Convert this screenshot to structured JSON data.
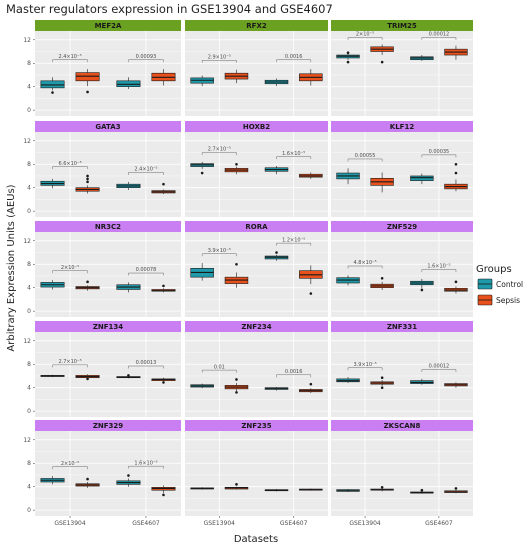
{
  "title": "Master regulators expression in GSE13904 and GSE4607",
  "xlabel": "Datasets",
  "ylabel": "Arbitrary Expression Units (AEUs)",
  "legend": {
    "title": "Groups",
    "items": [
      {
        "label": "Control",
        "color": "#1f9aaa"
      },
      {
        "label": "Sepsis",
        "color": "#e8501c"
      }
    ]
  },
  "colors": {
    "panel_bg": "#ebebeb",
    "grid": "#ffffff",
    "strip_row1": "#6aa121",
    "strip_other": "#c97ef2"
  },
  "chart_data": {
    "type": "box",
    "facet_layout": {
      "rows": 5,
      "cols": 3
    },
    "categories": [
      "GSE13904",
      "GSE4607"
    ],
    "groups": [
      "Control",
      "Sepsis"
    ],
    "y_ticks": [
      0,
      4,
      8,
      12
    ],
    "ylim": [
      -1,
      13.5
    ],
    "grid": true,
    "legend_position": "right",
    "panels": [
      {
        "gene": "MEF2A",
        "strip": "row1",
        "pvalues": [
          "2.4×10⁻⁵",
          "0.00093"
        ],
        "boxes": [
          [
            3.4,
            3.8,
            4.3,
            5.0,
            5.6,
            [
              3.0
            ]
          ],
          [
            4.1,
            5.0,
            5.8,
            6.4,
            7.0,
            [
              3.1
            ]
          ],
          [
            3.6,
            4.0,
            4.4,
            5.0,
            5.6,
            []
          ],
          [
            4.2,
            5.0,
            5.6,
            6.3,
            7.0,
            []
          ]
        ]
      },
      {
        "gene": "RFX2",
        "strip": "row1",
        "pvalues": [
          "2.9×10⁻⁵",
          "0.0016"
        ],
        "boxes": [
          [
            4.1,
            4.6,
            5.1,
            5.5,
            5.9,
            []
          ],
          [
            4.6,
            5.3,
            5.8,
            6.3,
            6.9,
            []
          ],
          [
            4.1,
            4.5,
            4.8,
            5.1,
            5.4,
            []
          ],
          [
            4.2,
            5.0,
            5.6,
            6.2,
            7.0,
            []
          ]
        ]
      },
      {
        "gene": "TRIM25",
        "strip": "row1",
        "pvalues": [
          "2×10⁻⁵",
          "0.00012"
        ],
        "boxes": [
          [
            8.6,
            8.9,
            9.2,
            9.4,
            9.6,
            [
              9.8,
              8.2
            ]
          ],
          [
            9.4,
            10.0,
            10.4,
            10.8,
            11.2,
            [
              8.2
            ]
          ],
          [
            8.4,
            8.6,
            8.9,
            9.1,
            9.4,
            []
          ],
          [
            8.6,
            9.4,
            9.9,
            10.4,
            11.0,
            []
          ]
        ]
      },
      {
        "gene": "GATA3",
        "strip": "other",
        "pvalues": [
          "6.6×10⁻⁵",
          "2.4×10⁻⁵"
        ],
        "boxes": [
          [
            3.9,
            4.4,
            4.7,
            5.1,
            5.5,
            []
          ],
          [
            3.0,
            3.4,
            3.7,
            4.0,
            4.4,
            [
              5.0,
              5.5,
              6.0
            ]
          ],
          [
            3.6,
            4.0,
            4.3,
            4.6,
            5.0,
            []
          ],
          [
            2.9,
            3.1,
            3.3,
            3.5,
            3.7,
            [
              4.6
            ]
          ]
        ]
      },
      {
        "gene": "HOXB2",
        "strip": "other",
        "pvalues": [
          "2.7×10⁻⁵",
          "1.6×10⁻⁵"
        ],
        "boxes": [
          [
            7.2,
            7.6,
            7.9,
            8.1,
            8.4,
            [
              6.5
            ]
          ],
          [
            6.3,
            6.7,
            7.0,
            7.3,
            7.6,
            [
              8.0
            ]
          ],
          [
            6.3,
            6.8,
            7.1,
            7.4,
            7.7,
            []
          ],
          [
            5.5,
            5.8,
            6.0,
            6.3,
            6.6,
            []
          ]
        ]
      },
      {
        "gene": "KLF12",
        "strip": "other",
        "pvalues": [
          "0.00055",
          "0.00035"
        ],
        "boxes": [
          [
            4.6,
            5.5,
            6.0,
            6.5,
            7.3,
            []
          ],
          [
            3.2,
            4.4,
            5.0,
            5.6,
            6.6,
            []
          ],
          [
            4.6,
            5.2,
            5.7,
            6.0,
            6.4,
            []
          ],
          [
            3.4,
            3.8,
            4.2,
            4.6,
            5.4,
            [
              6.5,
              8.0
            ]
          ]
        ]
      },
      {
        "gene": "NR3C2",
        "strip": "other",
        "pvalues": [
          "2×10⁻⁵",
          "0.00078"
        ],
        "boxes": [
          [
            3.7,
            4.1,
            4.5,
            4.9,
            5.3,
            []
          ],
          [
            3.5,
            3.8,
            4.0,
            4.2,
            4.4,
            [
              5.0
            ]
          ],
          [
            3.2,
            3.7,
            4.1,
            4.5,
            4.9,
            []
          ],
          [
            3.2,
            3.4,
            3.5,
            3.7,
            3.9,
            [
              4.3
            ]
          ]
        ]
      },
      {
        "gene": "RORA",
        "strip": "other",
        "pvalues": [
          "3.9×10⁻⁵",
          "1.2×10⁻⁵"
        ],
        "boxes": [
          [
            5.2,
            5.8,
            6.6,
            7.3,
            8.2,
            []
          ],
          [
            4.0,
            4.7,
            5.3,
            5.8,
            6.6,
            [
              8.0
            ]
          ],
          [
            8.6,
            8.9,
            9.2,
            9.4,
            9.6,
            [
              10.0
            ]
          ],
          [
            4.6,
            5.6,
            6.2,
            6.9,
            7.8,
            [
              3.0
            ]
          ]
        ]
      },
      {
        "gene": "ZNF529",
        "strip": "other",
        "pvalues": [
          "4.8×10⁻⁵",
          "1.6×10⁻⁵"
        ],
        "boxes": [
          [
            4.4,
            4.8,
            5.3,
            5.7,
            6.1,
            []
          ],
          [
            3.6,
            4.0,
            4.3,
            4.6,
            5.0,
            [
              5.6
            ]
          ],
          [
            3.8,
            4.5,
            4.8,
            5.1,
            5.5,
            [
              3.6
            ]
          ],
          [
            3.0,
            3.4,
            3.6,
            3.9,
            4.2,
            [
              5.0
            ]
          ]
        ]
      },
      {
        "gene": "ZNF134",
        "strip": "other",
        "pvalues": [
          "2.7×10⁻⁵",
          "0.00013"
        ],
        "boxes": [
          [
            5.8,
            5.9,
            6.0,
            6.1,
            6.2,
            []
          ],
          [
            5.4,
            5.7,
            5.9,
            6.1,
            6.3,
            [
              5.5
            ]
          ],
          [
            5.6,
            5.7,
            5.8,
            5.9,
            6.0,
            [
              6.1
            ]
          ],
          [
            5.0,
            5.2,
            5.4,
            5.5,
            5.7,
            [
              4.9
            ]
          ]
        ]
      },
      {
        "gene": "ZNF234",
        "strip": "other",
        "pvalues": [
          "0.01",
          "0.0016"
        ],
        "boxes": [
          [
            3.9,
            4.1,
            4.3,
            4.5,
            4.7,
            []
          ],
          [
            3.4,
            3.8,
            4.1,
            4.4,
            4.8,
            [
              5.4,
              3.2
            ]
          ],
          [
            3.5,
            3.7,
            3.9,
            4.0,
            4.1,
            []
          ],
          [
            3.1,
            3.3,
            3.5,
            3.7,
            3.9,
            [
              4.6
            ]
          ]
        ]
      },
      {
        "gene": "ZNF331",
        "strip": "other",
        "pvalues": [
          "3.9×10⁻⁵",
          "0.00012"
        ],
        "boxes": [
          [
            4.8,
            5.0,
            5.2,
            5.5,
            5.8,
            []
          ],
          [
            4.3,
            4.6,
            4.8,
            5.0,
            5.3,
            [
              5.7,
              4.0
            ]
          ],
          [
            4.5,
            4.7,
            4.9,
            5.2,
            5.5,
            []
          ],
          [
            4.0,
            4.3,
            4.5,
            4.7,
            4.9,
            []
          ]
        ]
      },
      {
        "gene": "ZNF329",
        "strip": "other",
        "pvalues": [
          "2×10⁻⁵",
          "1.6×10⁻⁵"
        ],
        "boxes": [
          [
            4.4,
            4.8,
            5.1,
            5.4,
            5.8,
            []
          ],
          [
            3.8,
            4.1,
            4.3,
            4.5,
            4.8,
            [
              5.3
            ]
          ],
          [
            4.0,
            4.4,
            4.7,
            5.0,
            5.4,
            [
              5.9
            ]
          ],
          [
            2.9,
            3.4,
            3.7,
            3.9,
            4.2,
            [
              2.6
            ]
          ]
        ]
      },
      {
        "gene": "ZNF235",
        "strip": "other",
        "pvalues": [],
        "boxes": [
          [
            3.5,
            3.6,
            3.7,
            3.8,
            3.9,
            []
          ],
          [
            3.5,
            3.6,
            3.8,
            3.9,
            4.0,
            [
              4.4
            ]
          ],
          [
            3.2,
            3.3,
            3.4,
            3.5,
            3.6,
            []
          ],
          [
            3.3,
            3.4,
            3.5,
            3.6,
            3.7,
            []
          ]
        ]
      },
      {
        "gene": "ZKSCAN8",
        "strip": "other",
        "pvalues": [],
        "boxes": [
          [
            3.1,
            3.2,
            3.3,
            3.5,
            3.6,
            []
          ],
          [
            3.2,
            3.4,
            3.5,
            3.6,
            3.7,
            [
              3.9
            ]
          ],
          [
            2.8,
            2.9,
            3.0,
            3.1,
            3.2,
            [
              3.4
            ]
          ],
          [
            2.9,
            3.0,
            3.1,
            3.3,
            3.4,
            [
              3.7
            ]
          ]
        ]
      }
    ]
  }
}
